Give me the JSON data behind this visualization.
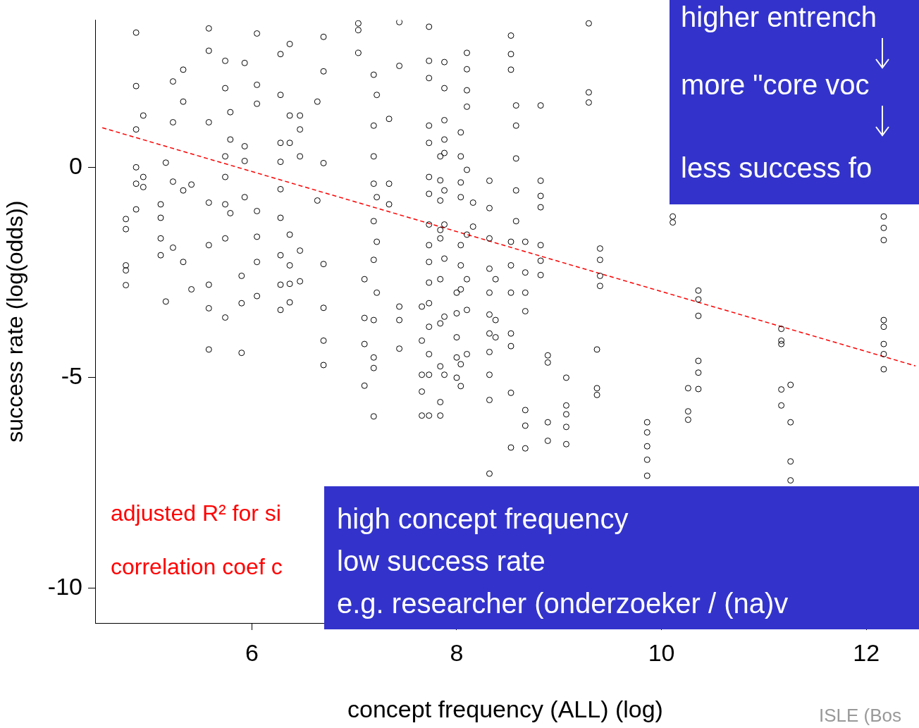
{
  "chart_data": {
    "type": "scatter",
    "xlabel": "concept frequency (ALL) (log)",
    "ylabel": "success rate (log(odds))",
    "xlim": [
      4.47,
      12.48
    ],
    "ylim": [
      -10.83,
      3.5
    ],
    "xticks": [
      6,
      8,
      10,
      12
    ],
    "yticks": [
      0,
      -5,
      -10
    ],
    "grid": false,
    "legend": false,
    "marker": "circle",
    "series": [
      {
        "type": "scatter",
        "color": "#000000",
        "x": [
          4.77,
          4.77,
          4.77,
          4.77,
          4.77,
          4.87,
          4.87,
          4.87,
          4.87,
          4.87,
          4.87,
          4.94,
          4.94,
          4.94,
          5.11,
          5.11,
          5.11,
          5.11,
          5.16,
          5.16,
          5.23,
          5.23,
          5.23,
          5.23,
          5.33,
          5.33,
          5.33,
          5.33,
          5.41,
          5.41,
          5.58,
          5.58,
          5.58,
          5.58,
          5.58,
          5.58,
          5.58,
          5.58,
          5.74,
          5.74,
          5.74,
          5.74,
          5.74,
          5.74,
          5.74,
          5.79,
          5.79,
          5.79,
          5.9,
          5.9,
          5.9,
          5.93,
          5.93,
          5.93,
          5.93,
          6.05,
          6.05,
          6.05,
          6.05,
          6.05,
          6.05,
          6.05,
          6.28,
          6.28,
          6.28,
          6.28,
          6.28,
          6.28,
          6.28,
          6.28,
          6.28,
          6.37,
          6.37,
          6.37,
          6.37,
          6.37,
          6.37,
          6.37,
          6.47,
          6.47,
          6.47,
          6.47,
          6.47,
          6.64,
          6.64,
          6.7,
          6.7,
          6.7,
          6.7,
          6.7,
          6.7,
          6.7,
          7.04,
          7.04,
          7.04,
          7.1,
          7.1,
          7.1,
          7.1,
          7.19,
          7.19,
          7.19,
          7.19,
          7.19,
          7.19,
          7.19,
          7.19,
          7.19,
          7.19,
          7.22,
          7.22,
          7.22,
          7.22,
          7.34,
          7.34,
          7.34,
          7.44,
          7.44,
          7.44,
          7.44,
          7.44,
          7.66,
          7.66,
          7.66,
          7.66,
          7.66,
          7.73,
          7.73,
          7.73,
          7.73,
          7.73,
          7.73,
          7.73,
          7.73,
          7.73,
          7.73,
          7.73,
          7.73,
          7.73,
          7.73,
          7.73,
          7.73,
          7.84,
          7.84,
          7.84,
          7.84,
          7.84,
          7.84,
          7.84,
          7.84,
          7.84,
          7.84,
          7.88,
          7.88,
          7.88,
          7.88,
          7.88,
          7.88,
          7.88,
          7.88,
          7.88,
          7.88,
          8.0,
          8.0,
          8.0,
          8.0,
          8.0,
          8.04,
          8.04,
          8.04,
          8.04,
          8.04,
          8.04,
          8.04,
          8.04,
          8.04,
          8.1,
          8.1,
          8.1,
          8.1,
          8.1,
          8.1,
          8.1,
          8.1,
          8.1,
          8.16,
          8.16,
          8.32,
          8.32,
          8.32,
          8.32,
          8.32,
          8.32,
          8.32,
          8.32,
          8.32,
          8.32,
          8.32,
          8.38,
          8.38,
          8.38,
          8.53,
          8.53,
          8.53,
          8.53,
          8.53,
          8.53,
          8.53,
          8.53,
          8.53,
          8.53,
          8.58,
          8.58,
          8.58,
          8.58,
          8.58,
          8.67,
          8.67,
          8.67,
          8.67,
          8.67,
          8.67,
          8.67,
          8.82,
          8.82,
          8.82,
          8.82,
          8.82,
          8.82,
          8.82,
          8.89,
          8.89,
          8.89,
          8.89,
          9.07,
          9.07,
          9.07,
          9.07,
          9.07,
          9.29,
          9.29,
          9.29,
          9.37,
          9.37,
          9.37,
          9.4,
          9.4,
          9.4,
          9.4,
          9.86,
          9.86,
          9.86,
          9.86,
          9.86,
          10.11,
          10.11,
          10.26,
          10.26,
          10.26,
          10.36,
          10.36,
          10.36,
          10.36,
          10.36,
          10.36,
          11.17,
          11.17,
          11.17,
          11.17,
          11.17,
          11.26,
          11.26,
          11.26,
          11.26,
          12.17,
          12.17,
          12.17,
          12.17,
          12.17,
          12.17,
          12.17,
          12.17
        ],
        "values": [
          -2.33,
          -2.45,
          -2.8,
          -1.23,
          -1.47,
          3.2,
          1.93,
          0.9,
          0,
          -0.39,
          -1.0,
          1.23,
          -0.23,
          -0.47,
          -0.88,
          -1.69,
          -2.09,
          -1.2,
          0.11,
          -3.19,
          2.04,
          1.07,
          -0.34,
          -1.91,
          2.32,
          1.56,
          -0.55,
          -2.25,
          -0.41,
          -2.9,
          3.3,
          2.77,
          1.07,
          -0.84,
          -1.85,
          -2.79,
          -3.35,
          -4.33,
          2.53,
          1.88,
          0.26,
          -0.23,
          -0.88,
          -1.69,
          -3.57,
          1.31,
          0.66,
          -1.09,
          -2.58,
          -3.23,
          -4.41,
          2.48,
          0.5,
          0.15,
          -0.71,
          3.18,
          1.96,
          1.51,
          -1.04,
          -1.65,
          -2.25,
          -3.06,
          2.69,
          1.72,
          0.58,
          0.13,
          -0.52,
          -1.2,
          -2.09,
          -2.79,
          -3.39,
          2.93,
          1.23,
          0.58,
          -1.6,
          -2.33,
          -2.77,
          -3.21,
          1.23,
          0.9,
          0.26,
          -1.98,
          -2.71,
          1.56,
          -0.79,
          3.1,
          2.28,
          0.1,
          -2.3,
          -3.34,
          -4.12,
          -4.7,
          3.42,
          3.26,
          2.72,
          -2.66,
          -3.58,
          -4.2,
          -5.19,
          2.2,
          0.99,
          0.26,
          -0.39,
          -1.28,
          -2.2,
          -3.63,
          -4.52,
          -4.77,
          -5.92,
          1.72,
          -0.71,
          -1.77,
          -2.98,
          1.15,
          -0.39,
          -0.88,
          3.45,
          2.41,
          -3.31,
          -3.63,
          -4.31,
          -3.31,
          -4.12,
          -4.93,
          -5.33,
          -5.9,
          3.34,
          2.53,
          2.12,
          0.99,
          0.58,
          -0.23,
          -0.63,
          -1.36,
          -1.85,
          -2.25,
          -2.74,
          -3.23,
          -3.79,
          -4.44,
          -4.93,
          -5.9,
          0.26,
          -0.31,
          -0.79,
          -1.49,
          -1.69,
          -2.66,
          -3.71,
          -4.73,
          -5.9,
          -5.58,
          2.5,
          1.88,
          1.12,
          0.66,
          0.34,
          -0.55,
          -1.36,
          -2.17,
          -3.55,
          -4.93,
          -2.98,
          -3.47,
          -4.04,
          -4.52,
          -5.0,
          0.83,
          0.26,
          -0.36,
          -0.71,
          -1.85,
          -2.33,
          -2.9,
          -4.68,
          -5.2,
          2.72,
          2.33,
          1.83,
          1.44,
          -0.06,
          -1.6,
          -2.66,
          -3.39,
          -4.44,
          -0.84,
          -1.41,
          -0.32,
          -0.97,
          -1.69,
          -2.41,
          -2.98,
          -3.5,
          -3.95,
          -4.39,
          -4.93,
          -5.53,
          -7.28,
          -2.66,
          -3.63,
          -4.04,
          3.13,
          2.69,
          2.32,
          -1.77,
          -2.33,
          -2.98,
          -3.95,
          -4.25,
          -5.36,
          -6.66,
          1.47,
          0.99,
          0.21,
          -0.55,
          -1.28,
          -1.77,
          -2.5,
          -2.98,
          -3.42,
          -5.77,
          -6.14,
          -6.68,
          1.47,
          -0.32,
          -0.68,
          -0.95,
          -1.85,
          -2.22,
          -2.56,
          -4.47,
          -4.64,
          -6.06,
          -6.5,
          -5.0,
          -5.66,
          -5.87,
          -6.17,
          -6.58,
          3.42,
          1.78,
          1.54,
          -4.33,
          -5.25,
          -5.41,
          -1.93,
          -2.2,
          -2.58,
          -2.82,
          -6.06,
          -6.3,
          -6.63,
          -6.95,
          -7.33,
          -1.17,
          -1.31,
          -5.25,
          -5.8,
          -6.0,
          -2.93,
          -3.14,
          -3.53,
          -4.6,
          -4.88,
          -5.27,
          -3.84,
          -4.12,
          -4.2,
          -5.28,
          -5.66,
          -5.17,
          -6.06,
          -6.99,
          -7.44,
          -1.17,
          -1.44,
          -1.73,
          -3.63,
          -3.79,
          -4.2,
          -4.44,
          -4.8
        ]
      },
      {
        "type": "line",
        "color": "#ff0000",
        "line_style": "dashed",
        "marker": "none",
        "x": [
          4.54,
          12.48
        ],
        "values": [
          0.94,
          -4.72
        ]
      }
    ],
    "annotations": [
      "higher entrench",
      "more \"core voc",
      "less success fo",
      "high concept frequency",
      "low success rate",
      "e.g. researcher (onderzoeker / (na)v",
      "adjusted R² for si",
      "correlation coef c",
      "ISLE (Bos"
    ]
  }
}
